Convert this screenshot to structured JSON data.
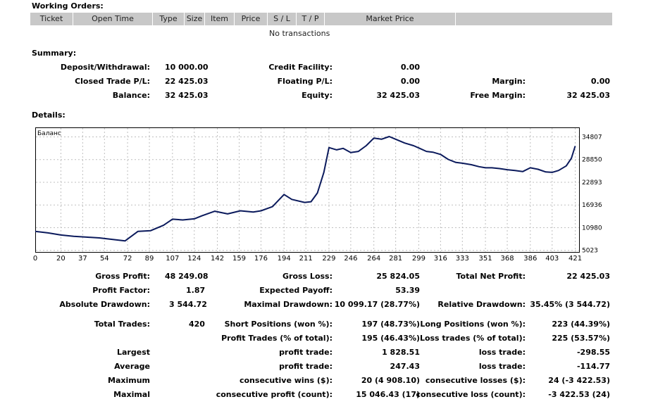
{
  "working_orders": {
    "title": "Working Orders:",
    "columns": [
      "Ticket",
      "Open Time",
      "Type",
      "Size",
      "Item",
      "Price",
      "S / L",
      "T / P",
      "Market Price"
    ],
    "empty_text": "No transactions"
  },
  "summary": {
    "title": "Summary:",
    "deposit_label": "Deposit/Withdrawal:",
    "deposit_value": "10 000.00",
    "credit_label": "Credit Facility:",
    "credit_value": "0.00",
    "closed_label": "Closed Trade P/L:",
    "closed_value": "22 425.03",
    "floating_label": "Floating P/L:",
    "floating_value": "0.00",
    "margin_label": "Margin:",
    "margin_value": "0.00",
    "balance_label": "Balance:",
    "balance_value": "32 425.03",
    "equity_label": "Equity:",
    "equity_value": "32 425.03",
    "free_margin_label": "Free Margin:",
    "free_margin_value": "32 425.03"
  },
  "details": {
    "title": "Details:",
    "gross_profit_label": "Gross Profit:",
    "gross_profit_value": "48 249.08",
    "gross_loss_label": "Gross Loss:",
    "gross_loss_value": "25 824.05",
    "net_profit_label": "Total Net Profit:",
    "net_profit_value": "22 425.03",
    "profit_factor_label": "Profit Factor:",
    "profit_factor_value": "1.87",
    "expected_payoff_label": "Expected Payoff:",
    "expected_payoff_value": "53.39",
    "abs_dd_label": "Absolute Drawdown:",
    "abs_dd_value": "3 544.72",
    "max_dd_label": "Maximal Drawdown:",
    "max_dd_value": "10 099.17 (28.77%)",
    "rel_dd_label": "Relative Drawdown:",
    "rel_dd_value": "35.45% (3 544.72)",
    "total_trades_label": "Total Trades:",
    "total_trades_value": "420",
    "short_label": "Short Positions (won %):",
    "short_value": "197 (48.73%)",
    "long_label": "Long Positions (won %):",
    "long_value": "223 (44.39%)",
    "profit_trades_label": "Profit Trades (% of total):",
    "profit_trades_value": "195 (46.43%)",
    "loss_trades_label": "Loss trades (% of total):",
    "loss_trades_value": "225 (53.57%)",
    "largest_label": "Largest",
    "largest_profit_label": "profit trade:",
    "largest_profit_value": "1 828.51",
    "largest_loss_label": "loss trade:",
    "largest_loss_value": "-298.55",
    "average_label": "Average",
    "average_profit_label": "profit trade:",
    "average_profit_value": "247.43",
    "average_loss_label": "loss trade:",
    "average_loss_value": "-114.77",
    "maximum_label": "Maximum",
    "max_wins_label": "consecutive wins ($):",
    "max_wins_value": "20 (4 908.10)",
    "max_losses_label": "consecutive losses ($):",
    "max_losses_value": "24 (-3 422.53)",
    "maximal_label": "Maximal",
    "max_profit_label": "consecutive profit (count):",
    "max_profit_value": "15 046.43 (17)",
    "max_loss_label": "consecutive loss (count):",
    "max_loss_value": "-3 422.53 (24)"
  },
  "chart_data": {
    "type": "line",
    "title": "Баланс",
    "xlabel": "",
    "ylabel": "",
    "x_ticks": [
      0,
      20,
      37,
      54,
      72,
      89,
      107,
      124,
      142,
      159,
      176,
      194,
      211,
      229,
      246,
      264,
      281,
      299,
      316,
      333,
      351,
      368,
      386,
      403,
      421
    ],
    "y_ticks": [
      5023,
      10980,
      16936,
      22893,
      28850,
      34807
    ],
    "xlim": [
      0,
      424
    ],
    "ylim": [
      4600,
      37300
    ],
    "series": [
      {
        "name": "Balance",
        "color": "#0b1a5c",
        "x": [
          0,
          10,
          20,
          30,
          40,
          50,
          60,
          70,
          80,
          90,
          100,
          107,
          115,
          124,
          130,
          140,
          150,
          160,
          170,
          176,
          185,
          194,
          200,
          210,
          215,
          220,
          225,
          229,
          235,
          240,
          246,
          252,
          258,
          264,
          270,
          276,
          281,
          288,
          295,
          299,
          305,
          310,
          316,
          322,
          328,
          333,
          340,
          346,
          351,
          356,
          362,
          368,
          374,
          380,
          386,
          392,
          398,
          403,
          408,
          414,
          418,
          421
        ],
        "y": [
          10000,
          9600,
          9050,
          8700,
          8500,
          8300,
          7900,
          7500,
          10000,
          10200,
          11600,
          13200,
          13000,
          13300,
          14100,
          15300,
          14600,
          15400,
          15100,
          15400,
          16500,
          19700,
          18400,
          17600,
          17800,
          20100,
          25500,
          32000,
          31400,
          31800,
          30700,
          31000,
          32500,
          34500,
          34200,
          34900,
          34200,
          33200,
          32500,
          31900,
          31000,
          30800,
          30200,
          28900,
          28100,
          27900,
          27500,
          27000,
          26700,
          26700,
          26500,
          26200,
          26000,
          25700,
          26700,
          26300,
          25600,
          25500,
          26000,
          27200,
          29200,
          32400
        ]
      }
    ]
  }
}
